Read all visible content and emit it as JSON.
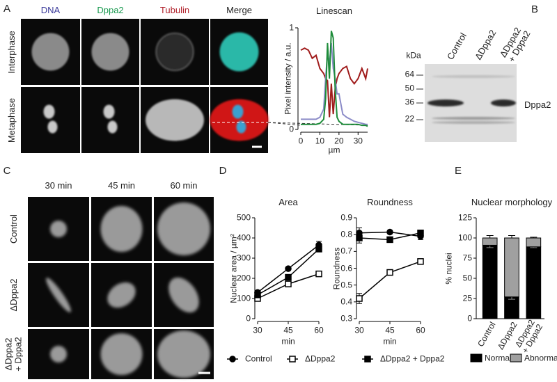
{
  "panel_letters": [
    "A",
    "B",
    "C",
    "D",
    "E"
  ],
  "microscopy_a": {
    "columns": [
      "DNA",
      "Dppa2",
      "Tubulin",
      "Merge"
    ],
    "rows": [
      "Interphase",
      "Metaphase"
    ]
  },
  "western_blot": {
    "columns": [
      "Control",
      "ΔDppa2",
      "ΔDppa2\n+ Dppa2"
    ],
    "unit": "kDa",
    "markers": [
      "64",
      "50",
      "36",
      "22"
    ],
    "band_label": "Dppa2"
  },
  "microscopy_c": {
    "columns": [
      "30 min",
      "45 min",
      "60 min"
    ],
    "rows": [
      "Control",
      "ΔDppa2",
      "ΔDppa2\n+ Dppa2"
    ]
  },
  "chart_data": [
    {
      "type": "line",
      "title": "Linescan",
      "x_label": "µm",
      "y_label": "Pixel intensity / a.u.",
      "x": [
        0,
        2,
        4,
        6,
        8,
        10,
        12,
        13,
        14,
        15,
        16,
        17,
        18,
        19,
        20,
        22,
        24,
        26,
        28,
        30,
        32,
        34,
        35
      ],
      "xlim": [
        0,
        35
      ],
      "xticks": [
        0,
        10,
        20,
        30
      ],
      "ylim": [
        0,
        1
      ],
      "yticks": [
        0,
        1
      ],
      "series": [
        {
          "color": "#a01c1c",
          "values": [
            0.78,
            0.8,
            0.78,
            0.7,
            0.73,
            0.6,
            0.55,
            0.5,
            0.48,
            0.12,
            0.45,
            0.15,
            0.4,
            0.5,
            0.55,
            0.6,
            0.62,
            0.5,
            0.45,
            0.5,
            0.6,
            0.5,
            0.6
          ]
        },
        {
          "color": "#8c8cc8",
          "values": [
            0.1,
            0.1,
            0.1,
            0.1,
            0.1,
            0.12,
            0.2,
            0.5,
            0.75,
            0.65,
            0.85,
            0.6,
            0.5,
            0.35,
            0.35,
            0.15,
            0.12,
            0.1,
            0.08,
            0.07,
            0.06,
            0.05,
            0.05
          ]
        },
        {
          "color": "#1e8c3a",
          "values": [
            0.05,
            0.05,
            0.05,
            0.05,
            0.05,
            0.06,
            0.1,
            0.3,
            0.85,
            0.5,
            0.97,
            0.9,
            0.4,
            0.12,
            0.08,
            0.05,
            0.05,
            0.05,
            0.05,
            0.05,
            0.04,
            0.04,
            0.03
          ]
        }
      ]
    },
    {
      "type": "line",
      "title": "Area",
      "x_label": "min",
      "y_label": "Nuclear area / µm²",
      "x": [
        30,
        45,
        60
      ],
      "xlim": [
        30,
        60
      ],
      "xticks": [
        30,
        45,
        60
      ],
      "ylim": [
        0,
        500
      ],
      "yticks": [
        0,
        100,
        200,
        300,
        400,
        500
      ],
      "series": [
        {
          "name": "Control",
          "color": "#000000",
          "marker": "circle",
          "values": [
            130,
            248,
            365
          ],
          "errors": [
            10,
            8,
            18
          ]
        },
        {
          "name": "ΔDppa2",
          "color": "#000000",
          "marker": "square-open",
          "values": [
            100,
            172,
            222
          ],
          "errors": [
            6,
            6,
            10
          ]
        },
        {
          "name": "ΔDppa2 + Dppa2",
          "color": "#000000",
          "marker": "square",
          "values": [
            118,
            205,
            345
          ],
          "errors": [
            8,
            8,
            12
          ]
        }
      ]
    },
    {
      "type": "line",
      "title": "Roundness",
      "x_label": "min",
      "y_label": "Roundness",
      "x": [
        30,
        45,
        60
      ],
      "xlim": [
        30,
        60
      ],
      "xticks": [
        30,
        45,
        60
      ],
      "ylim": [
        0.3,
        0.9
      ],
      "yticks": [
        0.3,
        0.4,
        0.5,
        0.6,
        0.7,
        0.8,
        0.9
      ],
      "series": [
        {
          "color": "#000000",
          "marker": "circle",
          "values": [
            0.81,
            0.815,
            0.79
          ],
          "errors": [
            0.03,
            0.01,
            0.02
          ]
        },
        {
          "color": "#000000",
          "marker": "square-open",
          "values": [
            0.42,
            0.575,
            0.64
          ],
          "errors": [
            0.03,
            0.015,
            0.015
          ]
        },
        {
          "color": "#000000",
          "marker": "square",
          "values": [
            0.78,
            0.77,
            0.81
          ],
          "errors": [
            0.03,
            0.015,
            0.01
          ]
        }
      ]
    },
    {
      "type": "bar",
      "stacked": true,
      "title": "Nuclear morphology",
      "y_label": "% nuclei",
      "categories": [
        "Control",
        "ΔDppa2",
        "ΔDppa2\n+ Dppa2"
      ],
      "ylim": [
        0,
        125
      ],
      "yticks": [
        0,
        25,
        50,
        75,
        100,
        125
      ],
      "series": [
        {
          "name": "Normal",
          "color": "#000000",
          "values": [
            91,
            27,
            89
          ],
          "errors": [
            3,
            3,
            1
          ]
        },
        {
          "name": "Abnormal",
          "color": "#a0a0a0",
          "values": [
            9,
            73,
            11
          ],
          "errors": [
            3,
            3,
            1
          ]
        }
      ]
    }
  ]
}
